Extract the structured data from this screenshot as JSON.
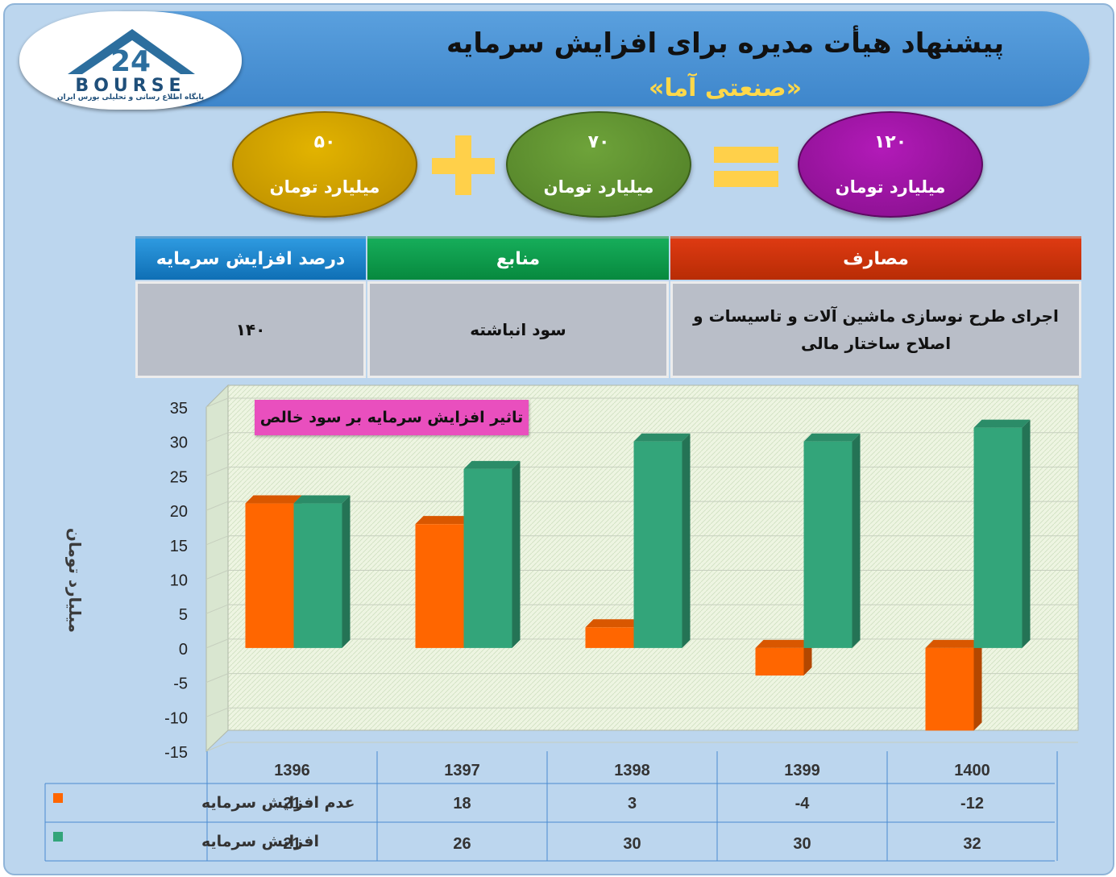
{
  "header": {
    "title": "پیشنهاد هیأت مدیره برای افزایش سرمایه",
    "subtitle": "«صنعتی آما»"
  },
  "logo": {
    "mark": "24",
    "text": "BOURSE",
    "tagline": "پایگاه اطلاع رسانی و تحلیلی بورس ایران"
  },
  "equation": {
    "term1": {
      "value": "۵۰",
      "unit": "میلیارد تومان",
      "color": "#c99a00"
    },
    "operator1": "plus",
    "term2": {
      "value": "۷۰",
      "unit": "میلیارد تومان",
      "color": "#5e8f2f"
    },
    "operator2": "equals",
    "total": {
      "value": "۱۲۰",
      "unit": "میلیارد تومان",
      "color": "#9c159f"
    }
  },
  "table": {
    "headers": {
      "uses": "مصارف",
      "sources": "منابع",
      "percent": "درصد افزایش سرمایه"
    },
    "row": {
      "uses": "اجرای طرح نوسازی ماشین آلات و تاسیسات و اصلاح ساختار مالی",
      "sources": "سود انباشته",
      "percent": "۱۴۰"
    }
  },
  "chart_data": {
    "type": "bar",
    "title": "تاثیر افزایش سرمایه بر سود خالص",
    "ylabel": "میلیارد تومان",
    "xlabel": "",
    "categories": [
      "1396",
      "1397",
      "1398",
      "1399",
      "1400"
    ],
    "series": [
      {
        "name": "عدم افزایش سرمایه",
        "values": [
          21,
          18,
          3,
          -4,
          -12
        ],
        "color": "#ff6600"
      },
      {
        "name": "افزایش سرمایه",
        "values": [
          21,
          26,
          30,
          30,
          32
        ],
        "color": "#33a57a"
      }
    ],
    "ylim": [
      -15,
      35
    ],
    "yticks": [
      35,
      30,
      25,
      20,
      15,
      10,
      5,
      0,
      -5,
      -10,
      -15
    ],
    "grid": true,
    "legend": "data-table-left"
  }
}
